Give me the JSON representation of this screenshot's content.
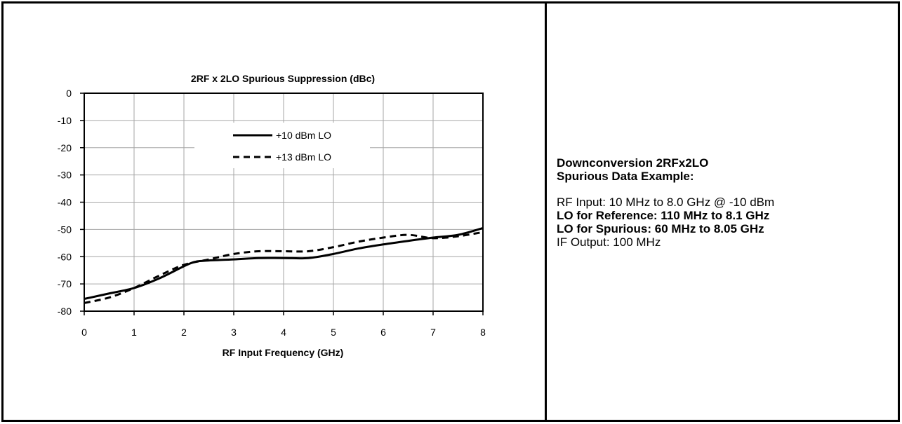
{
  "chart_data": {
    "type": "line",
    "title": "2RF x 2LO Spurious Suppression (dBc)",
    "xlabel": "RF Input Frequency (GHz)",
    "ylabel": "",
    "xlim": [
      0,
      8
    ],
    "ylim": [
      -80,
      0
    ],
    "xticks": [
      "0",
      "1",
      "2",
      "3",
      "4",
      "5",
      "6",
      "7",
      "8"
    ],
    "yticks": [
      "0",
      "-10",
      "-20",
      "-30",
      "-40",
      "-50",
      "-60",
      "-70",
      "-80"
    ],
    "grid": true,
    "legend_position": "upper-center",
    "series": [
      {
        "name": "+10 dBm LO",
        "style": "solid",
        "color": "#000000",
        "x": [
          0,
          0.5,
          1.0,
          1.5,
          2.0,
          2.2,
          2.4,
          3.0,
          3.5,
          4.0,
          4.5,
          5.0,
          5.5,
          6.0,
          6.5,
          7.0,
          7.5,
          8.0
        ],
        "y": [
          -75.5,
          -73.5,
          -71.5,
          -68,
          -63.5,
          -62,
          -61.5,
          -61,
          -60.5,
          -60.5,
          -60.5,
          -59,
          -57,
          -55.5,
          -54.2,
          -53,
          -52,
          -49.5
        ]
      },
      {
        "name": "+13 dBm LO",
        "style": "dashed",
        "color": "#000000",
        "x": [
          0,
          0.5,
          1.0,
          1.5,
          2.0,
          2.5,
          3.0,
          3.5,
          4.0,
          4.5,
          5.0,
          5.5,
          6.0,
          6.5,
          7.0,
          7.5,
          8.0
        ],
        "y": [
          -77,
          -75,
          -71.5,
          -67,
          -63,
          -61,
          -59,
          -58,
          -58,
          -58,
          -56.5,
          -54.5,
          -53,
          -52,
          -53.2,
          -52.5,
          -51
        ]
      }
    ]
  },
  "description": {
    "heading_line1": "Downconversion 2RFx2LO",
    "heading_line2": "Spurious Data Example:",
    "rf_input": "RF Input: 10 MHz to 8.0 GHz @ -10 dBm",
    "lo_reference": "LO for Reference: 110 MHz to 8.1 GHz",
    "lo_spurious": "LO for Spurious: 60 MHz to 8.05 GHz",
    "if_output": "IF Output: 100 MHz"
  }
}
